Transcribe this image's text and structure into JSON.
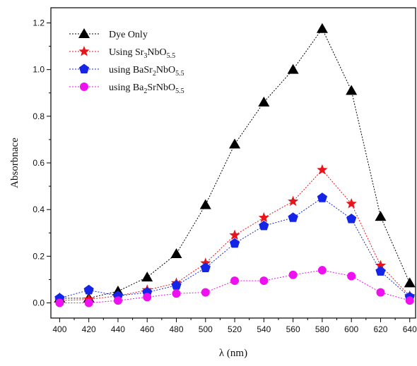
{
  "chart_data": {
    "type": "line",
    "title": "",
    "xlabel": "λ (nm)",
    "ylabel": "Absorbnace",
    "xlim": [
      394,
      644
    ],
    "ylim": [
      -0.065,
      1.265
    ],
    "xticks": [
      "400",
      "420",
      "440",
      "460",
      "480",
      "500",
      "520",
      "540",
      "560",
      "580",
      "600",
      "620",
      "640"
    ],
    "yticks": [
      "0.0",
      "0.2",
      "0.4",
      "0.6",
      "0.8",
      "1.0",
      "1.2"
    ],
    "x": [
      400,
      420,
      440,
      460,
      480,
      500,
      520,
      540,
      560,
      580,
      600,
      620,
      640
    ],
    "legend_position": "top-left",
    "grid": false,
    "series": [
      {
        "name": "Dye Only",
        "name_parts": [
          {
            "t": "Dye Only",
            "sub": false
          }
        ],
        "marker": "triangle",
        "color": "#000000",
        "values": [
          0.02,
          0.02,
          0.05,
          0.11,
          0.21,
          0.42,
          0.68,
          0.86,
          1.0,
          1.175,
          0.91,
          0.37,
          0.085
        ]
      },
      {
        "name": "Using Sr3NbO5.5",
        "name_parts": [
          {
            "t": "Using Sr",
            "sub": false
          },
          {
            "t": "3",
            "sub": true
          },
          {
            "t": "NbO",
            "sub": false
          },
          {
            "t": "5.5",
            "sub": true
          }
        ],
        "marker": "star",
        "color": "#e8141b",
        "values": [
          0.01,
          0.015,
          0.03,
          0.055,
          0.085,
          0.17,
          0.29,
          0.365,
          0.435,
          0.57,
          0.425,
          0.16,
          0.03
        ]
      },
      {
        "name": "using BaSr2NbO5.5",
        "name_parts": [
          {
            "t": "using BaSr",
            "sub": false
          },
          {
            "t": "2",
            "sub": true
          },
          {
            "t": "NbO",
            "sub": false
          },
          {
            "t": "5.5",
            "sub": true
          }
        ],
        "marker": "pentagon",
        "color": "#1525e8",
        "values": [
          0.02,
          0.055,
          0.03,
          0.045,
          0.075,
          0.15,
          0.255,
          0.33,
          0.365,
          0.45,
          0.36,
          0.135,
          0.025
        ]
      },
      {
        "name": "using Ba2SrNbO5.5",
        "name_parts": [
          {
            "t": "using Ba",
            "sub": false
          },
          {
            "t": "2",
            "sub": true
          },
          {
            "t": "SrNbO",
            "sub": false
          },
          {
            "t": "5.5",
            "sub": true
          }
        ],
        "marker": "circle",
        "color": "#ee10ee",
        "values": [
          0.0,
          0.0,
          0.01,
          0.025,
          0.04,
          0.045,
          0.095,
          0.095,
          0.12,
          0.14,
          0.115,
          0.045,
          0.01
        ]
      }
    ]
  }
}
